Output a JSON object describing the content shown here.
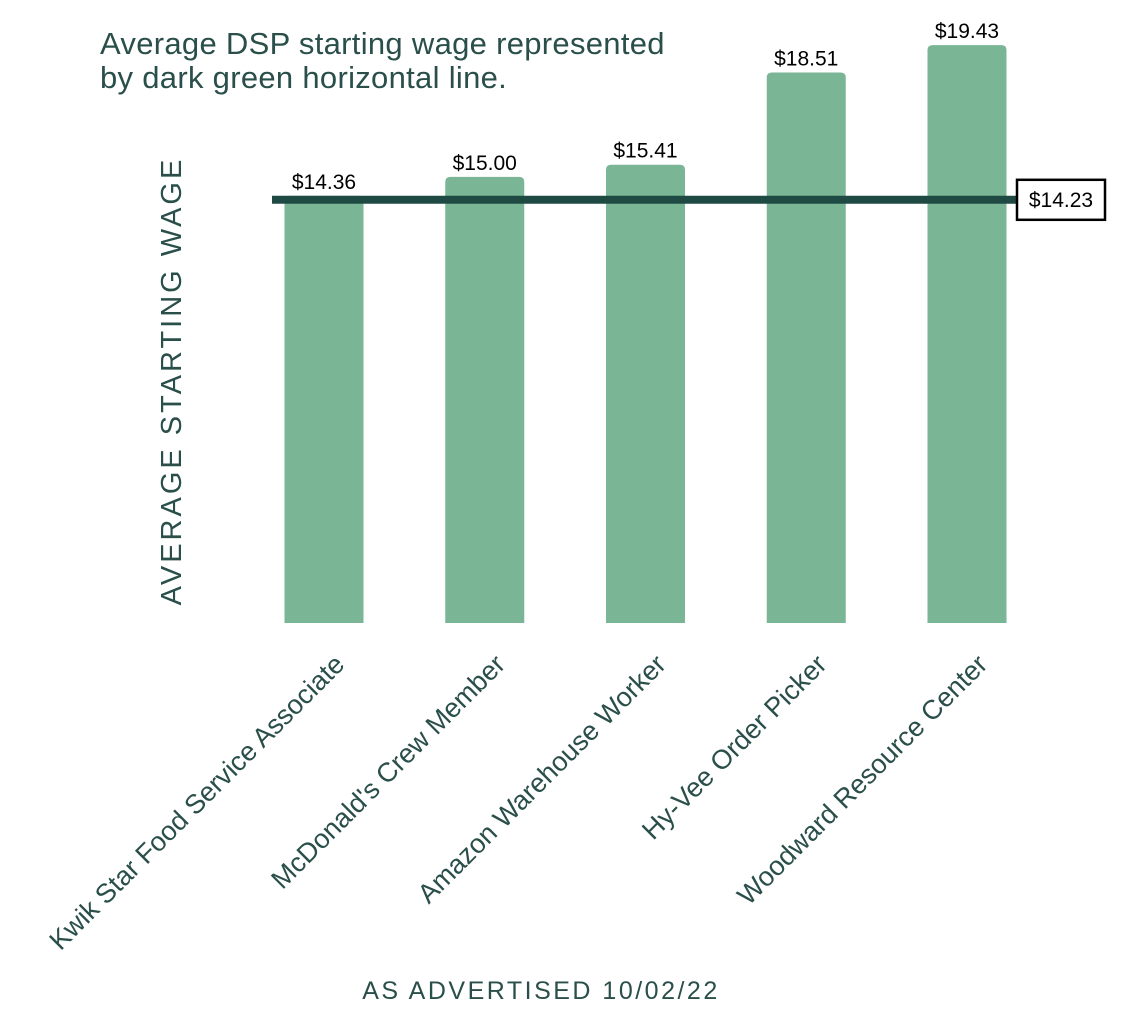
{
  "chart_data": {
    "type": "bar",
    "title": [
      "Average DSP starting wage represented",
      "by dark green horizontal line."
    ],
    "ylabel": "AVERAGE STARTING WAGE",
    "xlabel": "AS ADVERTISED 10/02/22",
    "categories": [
      "Kwik Star Food Service Associate",
      "McDonald's Crew Member",
      "Amazon Warehouse Worker",
      "Hy-Vee Order Picker",
      "Woodward Resource Center"
    ],
    "values": [
      14.36,
      15.0,
      15.41,
      18.51,
      19.43
    ],
    "value_labels": [
      "$14.36",
      "$15.00",
      "$15.41",
      "$18.51",
      "$19.43"
    ],
    "reference_line": {
      "value": 14.23,
      "label": "$14.23"
    },
    "colors": {
      "bar": "#7ab695",
      "reference_line": "#1f4a44",
      "text": "#2a4f4a"
    },
    "grid": false
  }
}
